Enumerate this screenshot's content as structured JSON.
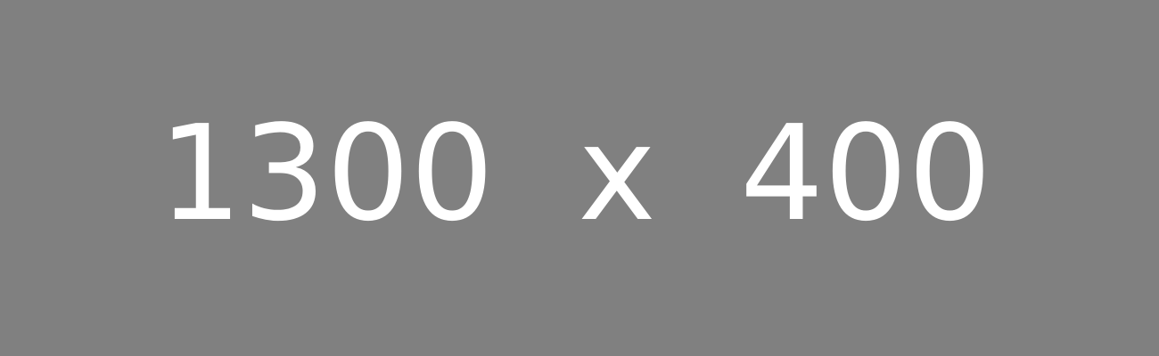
{
  "placeholder": {
    "text": "1300  x  400",
    "background_color": "#808080",
    "text_color": "#FFFFFF"
  }
}
